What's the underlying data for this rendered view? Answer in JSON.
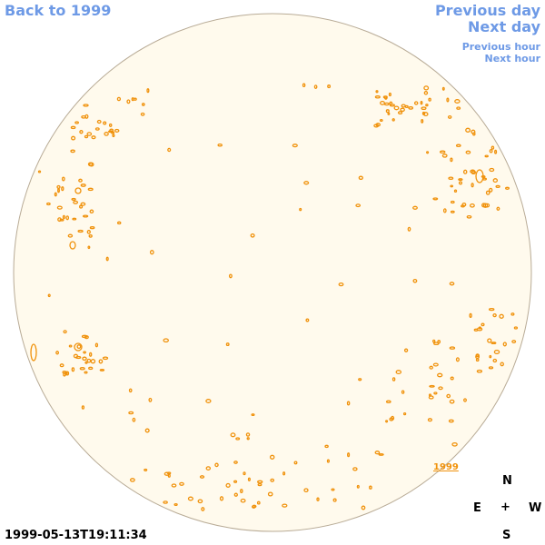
{
  "nav": {
    "back_label": "Back to 1999",
    "prev_day_label": "Previous day",
    "next_day_label": "Next day",
    "prev_hour_label": "Previous hour",
    "next_hour_label": "Next hour"
  },
  "timestamp": "1999-05-13T19:11:34",
  "year_label": "1999",
  "compass": {
    "north": "N",
    "east": "E",
    "center": "+",
    "west": "W",
    "south": "S"
  },
  "colors": {
    "link": "#6e9ae6",
    "disk_fill": "#fffaed",
    "disk_edge": "#b8ab96",
    "contour": "#f0920c",
    "text": "#000000"
  }
}
